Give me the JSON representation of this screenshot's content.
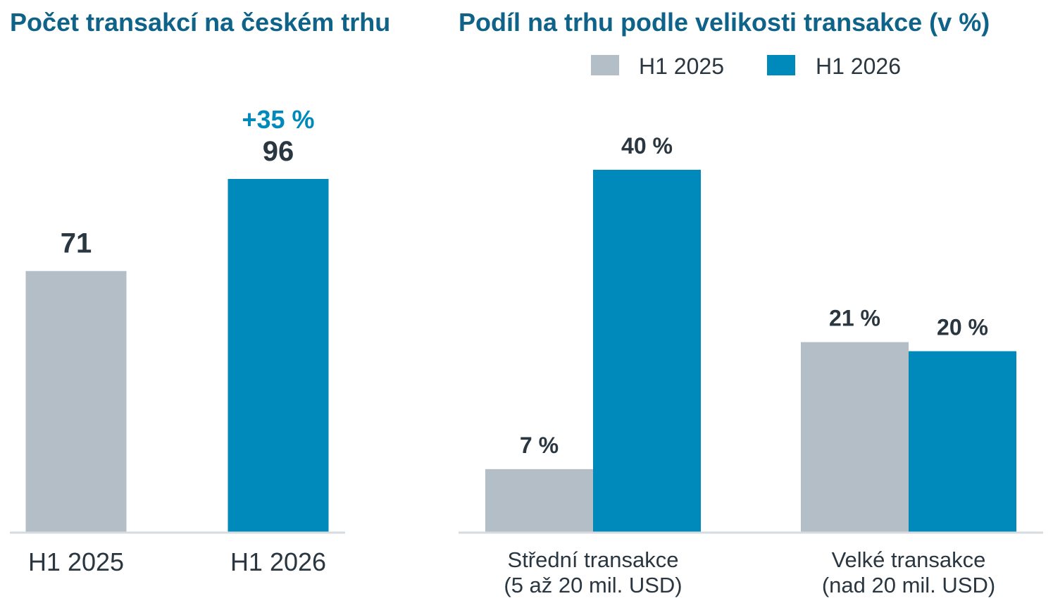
{
  "colors": {
    "title": "#0f6389",
    "h1_2025": "#b4bec6",
    "h1_2026": "#008abc",
    "label": "#2a3640",
    "axis": "#d6dbdf",
    "delta": "#008abc"
  },
  "chart_data": [
    {
      "type": "bar",
      "title": "Počet transakcí na českém trhu",
      "categories": [
        "H1 2025",
        "H1 2026"
      ],
      "values": [
        71,
        96
      ],
      "value_labels": [
        "71",
        "96"
      ],
      "annotation": "+35 %",
      "ylim": [
        0,
        110
      ],
      "grid": false
    },
    {
      "type": "bar",
      "title": "Podíl na trhu podle velikosti transakce (v %)",
      "categories": [
        [
          "Střední transakce",
          "(5 až 20 mil. USD)"
        ],
        [
          "Velké transakce",
          "(nad 20 mil. USD)"
        ]
      ],
      "series": [
        {
          "name": "H1 2025",
          "values": [
            7,
            21
          ],
          "value_labels": [
            "7 %",
            "21 %"
          ]
        },
        {
          "name": "H1 2026",
          "values": [
            40,
            20
          ],
          "value_labels": [
            "40 %",
            "20 %"
          ]
        }
      ],
      "ylim": [
        0,
        45
      ],
      "legend": "top-center",
      "grid": false
    }
  ]
}
